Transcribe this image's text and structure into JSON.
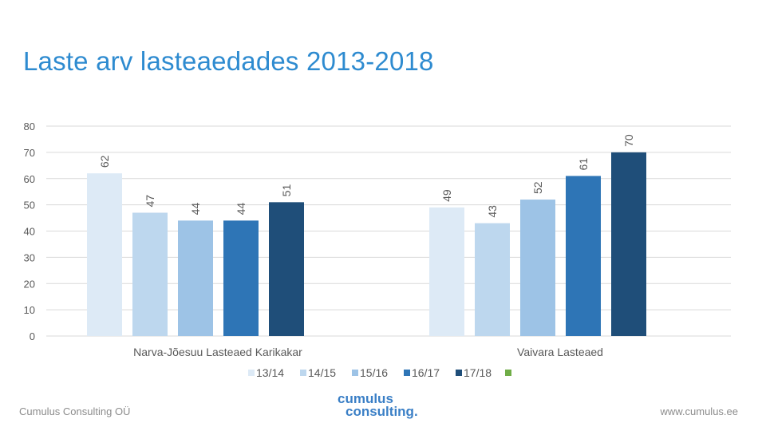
{
  "slide": {
    "title": "Laste arv lasteaedades 2013-2018",
    "footer_left": "Cumulus Consulting OÜ",
    "footer_right": "www.cumulus.ee",
    "logo_line1": "cumulus",
    "logo_line2": "consulting."
  },
  "colors": {
    "title": "#2e8bd0",
    "grid": "#d9d9d9",
    "axis_text": "#595959",
    "series": [
      "#ddeaf6",
      "#bdd7ee",
      "#9dc3e6",
      "#2e75b6",
      "#1f4e79"
    ],
    "extra_legend": "#70ad47"
  },
  "chart_data": {
    "type": "bar",
    "title": "Laste arv lasteaedades 2013-2018",
    "categories": [
      "Narva-Jõesuu Lasteaed Karikakar",
      "Vaivara Lasteaed"
    ],
    "series": [
      {
        "name": "13/14",
        "values": [
          62,
          49
        ]
      },
      {
        "name": "14/15",
        "values": [
          47,
          43
        ]
      },
      {
        "name": "15/16",
        "values": [
          44,
          52
        ]
      },
      {
        "name": "16/17",
        "values": [
          44,
          61
        ]
      },
      {
        "name": "17/18",
        "values": [
          51,
          70
        ]
      }
    ],
    "extra_legend_entry": "",
    "ylim": [
      0,
      80
    ],
    "yticks": [
      0,
      10,
      20,
      30,
      40,
      50,
      60,
      70,
      80
    ],
    "xlabel": "",
    "ylabel": "",
    "grid": true,
    "legend_position": "bottom"
  }
}
